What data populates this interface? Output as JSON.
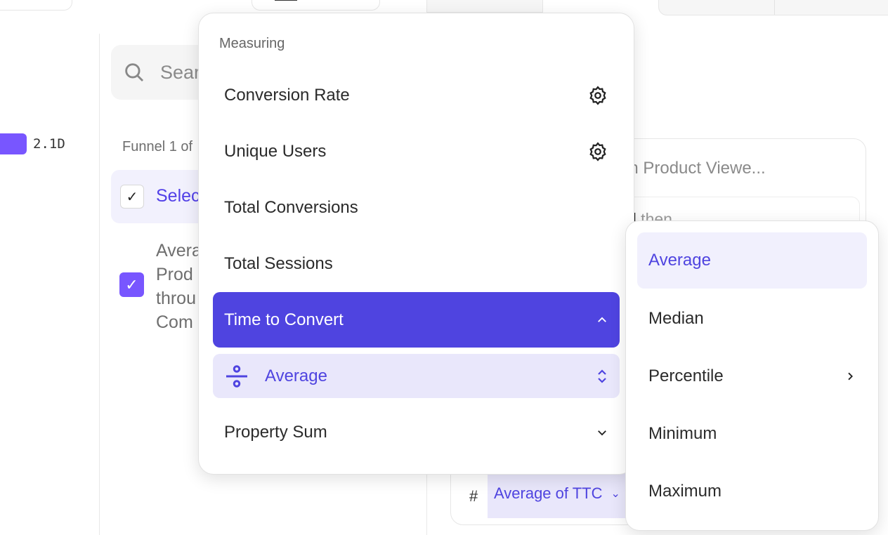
{
  "left_panel": {
    "bar_value": "2.1D",
    "bar_color": "#7856ff"
  },
  "sidebar": {
    "search_placeholder": "Sear",
    "funnel_label": "Funnel 1 of",
    "select_all_label": "Selec",
    "metric_lines": [
      "Avera",
      "Prod",
      "throu",
      "Com"
    ]
  },
  "card": {
    "event_text": "on Product Viewe...",
    "then_text_bold": "d",
    "then_text": " then",
    "hash": "#",
    "metric_pill": "Average of TTC"
  },
  "measuring_menu": {
    "header": "Measuring",
    "items": [
      {
        "label": "Conversion Rate",
        "icon": "gear-icon"
      },
      {
        "label": "Unique Users",
        "icon": "gear-icon"
      },
      {
        "label": "Total Conversions"
      },
      {
        "label": "Total Sessions"
      },
      {
        "label": "Time to Convert",
        "icon": "chevron-up-icon",
        "selected": true
      },
      {
        "label": "Average",
        "icon": "divide-icon",
        "trailing": "updown-chevron-icon"
      },
      {
        "label": "Property Sum",
        "icon": "chevron-down-icon"
      }
    ],
    "accent": "#4f44e0"
  },
  "aggregation_menu": {
    "items": [
      {
        "label": "Average",
        "selected": true
      },
      {
        "label": "Median"
      },
      {
        "label": "Percentile",
        "icon": "chevron-right-icon"
      },
      {
        "label": "Minimum"
      },
      {
        "label": "Maximum"
      }
    ]
  }
}
